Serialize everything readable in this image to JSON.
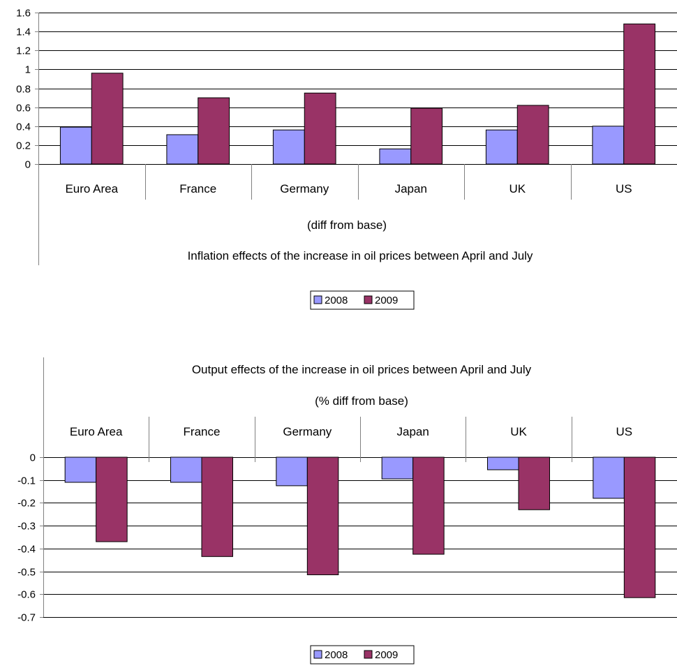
{
  "chart_data": [
    {
      "type": "bar",
      "title": "Inflation effects of the increase in oil prices between April and July",
      "subtitle": "(diff from base)",
      "categories": [
        "Euro Area",
        "France",
        "Germany",
        "Japan",
        "UK",
        "US"
      ],
      "series": [
        {
          "name": "2008",
          "values": [
            0.39,
            0.31,
            0.36,
            0.16,
            0.36,
            0.4
          ]
        },
        {
          "name": "2009",
          "values": [
            0.96,
            0.7,
            0.75,
            0.59,
            0.62,
            1.48
          ]
        }
      ],
      "ylim": [
        0,
        1.6
      ],
      "yticks": [
        "1.6",
        "1.4",
        "1.2",
        "1",
        "0.8",
        "0.6",
        "0.4",
        "0.2",
        "0"
      ],
      "ytick_values": [
        1.6,
        1.4,
        1.2,
        1.0,
        0.8,
        0.6,
        0.4,
        0.2,
        0
      ],
      "grid": true,
      "legend_position": "bottom",
      "xlabel": "",
      "ylabel": ""
    },
    {
      "type": "bar",
      "title": "Output effects of the increase in oil prices between April and July",
      "subtitle": "(% diff from base)",
      "categories": [
        "Euro Area",
        "France",
        "Germany",
        "Japan",
        "UK",
        "US"
      ],
      "series": [
        {
          "name": "2008",
          "values": [
            -0.11,
            -0.11,
            -0.125,
            -0.095,
            -0.055,
            -0.18
          ]
        },
        {
          "name": "2009",
          "values": [
            -0.37,
            -0.435,
            -0.515,
            -0.425,
            -0.23,
            -0.615
          ]
        }
      ],
      "ylim": [
        -0.7,
        0
      ],
      "yticks": [
        "0",
        "-0.1",
        "-0.2",
        "-0.3",
        "-0.4",
        "-0.5",
        "-0.6",
        "-0.7"
      ],
      "ytick_values": [
        0,
        -0.1,
        -0.2,
        -0.3,
        -0.4,
        -0.5,
        -0.6,
        -0.7
      ],
      "grid": true,
      "legend_position": "bottom",
      "xlabel": "",
      "ylabel": ""
    }
  ],
  "colors": {
    "series_2008": "#9999ff",
    "series_2009": "#993366",
    "grid": "#000000",
    "axis": "#808080",
    "bar_stroke": "#000000"
  }
}
